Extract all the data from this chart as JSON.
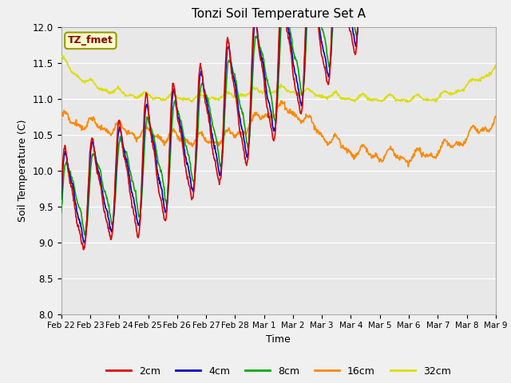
{
  "title": "Tonzi Soil Temperature Set A",
  "xlabel": "Time",
  "ylabel": "Soil Temperature (C)",
  "ylim": [
    8.0,
    12.0
  ],
  "yticks": [
    8.0,
    8.5,
    9.0,
    9.5,
    10.0,
    10.5,
    11.0,
    11.5,
    12.0
  ],
  "colors": {
    "2cm": "#dd0000",
    "4cm": "#0000cc",
    "8cm": "#00aa00",
    "16cm": "#ff8800",
    "32cm": "#dddd00"
  },
  "annotation_text": "TZ_fmet",
  "annotation_bg": "#ffffcc",
  "annotation_border": "#999900",
  "annotation_text_color": "#880000",
  "xtick_labels": [
    "Feb 22",
    "Feb 23",
    "Feb 24",
    "Feb 25",
    "Feb 26",
    "Feb 27",
    "Feb 28",
    "Mar 1",
    "Mar 2",
    "Mar 3",
    "Mar 4",
    "Mar 5",
    "Mar 6",
    "Mar 7",
    "Mar 8",
    "Mar 9"
  ]
}
